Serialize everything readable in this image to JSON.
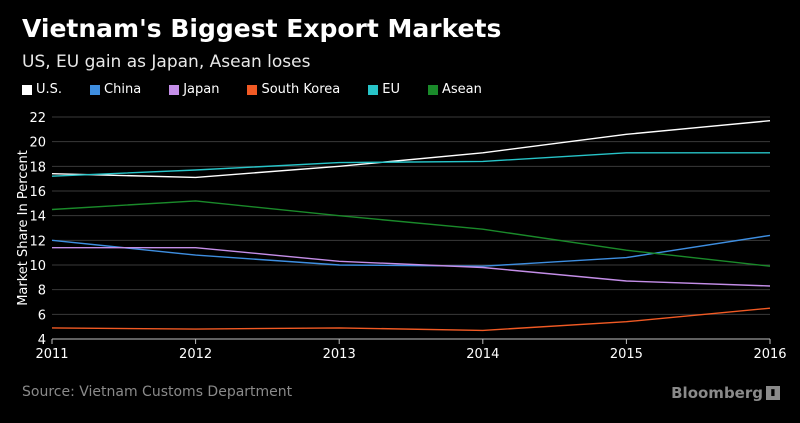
{
  "header": {
    "title": "Vietnam's Biggest Export Markets",
    "subtitle": "US, EU gain as Japan, Asean loses"
  },
  "footer": {
    "source": "Source: Vietnam Customs Department",
    "brand": "Bloomberg"
  },
  "chart_data": {
    "type": "line",
    "title": "Vietnam's Biggest Export Markets",
    "subtitle": "US, EU gain as Japan, Asean loses",
    "xlabel": "",
    "ylabel": "Market Share In Percent",
    "x": [
      "2011",
      "2012",
      "2013",
      "2014",
      "2015",
      "2016"
    ],
    "ylim": [
      4,
      22
    ],
    "yticks": [
      4,
      6,
      8,
      10,
      12,
      14,
      16,
      18,
      20,
      22
    ],
    "grid": true,
    "legend_position": "top-left",
    "series": [
      {
        "name": "U.S.",
        "color": "#ffffff",
        "values": [
          17.4,
          17.1,
          18.0,
          19.1,
          20.6,
          21.7
        ]
      },
      {
        "name": "China",
        "color": "#3e8ee0",
        "values": [
          12.0,
          10.8,
          10.0,
          9.9,
          10.6,
          12.4
        ]
      },
      {
        "name": "Japan",
        "color": "#c48ee8",
        "values": [
          11.4,
          11.4,
          10.3,
          9.8,
          8.7,
          8.3
        ]
      },
      {
        "name": "South Korea",
        "color": "#f15a24",
        "values": [
          4.9,
          4.8,
          4.9,
          4.7,
          5.4,
          6.5
        ]
      },
      {
        "name": "EU",
        "color": "#27c4c8",
        "values": [
          17.2,
          17.7,
          18.3,
          18.4,
          19.1,
          19.1
        ]
      },
      {
        "name": "Asean",
        "color": "#1a8a2a",
        "values": [
          14.5,
          15.2,
          14.0,
          12.9,
          11.2,
          9.9
        ]
      }
    ]
  }
}
